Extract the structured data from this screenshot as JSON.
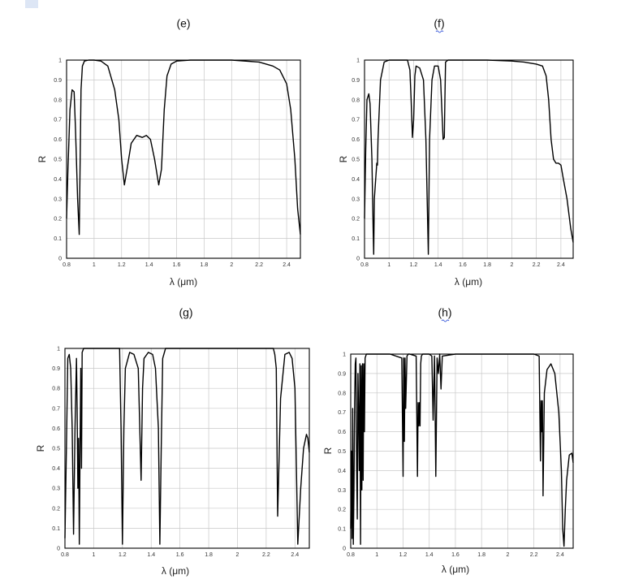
{
  "chart_data": [
    {
      "type": "line",
      "title": "(e)",
      "xlabel": "λ (μm)",
      "ylabel": "R",
      "xlim": [
        0.8,
        2.5
      ],
      "ylim": [
        0,
        1
      ],
      "x_ticks": [
        "0.8",
        "1",
        "1.2",
        "1.4",
        "1.6",
        "1.8",
        "2",
        "2.2",
        "2.4"
      ],
      "y_ticks": [
        "0",
        "0.1",
        "0.2",
        "0.3",
        "0.4",
        "0.5",
        "0.6",
        "0.7",
        "0.8",
        "0.9",
        "1"
      ],
      "grid": true,
      "series": [
        {
          "x": [
            0.8,
            0.81,
            0.825,
            0.84,
            0.855,
            0.865,
            0.88,
            0.892,
            0.9,
            0.905,
            0.915,
            0.93,
            0.96,
            1.0,
            1.05,
            1.1,
            1.15,
            1.18,
            1.2,
            1.22,
            1.24,
            1.27,
            1.31,
            1.35,
            1.38,
            1.41,
            1.44,
            1.47,
            1.49,
            1.51,
            1.53,
            1.56,
            1.6,
            1.7,
            1.8,
            2.0,
            2.2,
            2.3,
            2.35,
            2.4,
            2.43,
            2.46,
            2.48,
            2.5
          ],
          "y": [
            0.2,
            0.45,
            0.75,
            0.85,
            0.84,
            0.65,
            0.3,
            0.12,
            0.55,
            0.85,
            0.97,
            0.995,
            1.0,
            1.0,
            0.995,
            0.97,
            0.85,
            0.7,
            0.5,
            0.37,
            0.45,
            0.58,
            0.62,
            0.61,
            0.62,
            0.6,
            0.5,
            0.37,
            0.45,
            0.75,
            0.92,
            0.98,
            0.995,
            1.0,
            1.0,
            1.0,
            0.99,
            0.97,
            0.95,
            0.88,
            0.75,
            0.5,
            0.25,
            0.12
          ]
        }
      ]
    },
    {
      "type": "line",
      "title": "(f)",
      "xlabel": "λ (μm)",
      "ylabel": "R",
      "xlim": [
        0.8,
        2.5
      ],
      "ylim": [
        0,
        1
      ],
      "x_ticks": [
        "0.8",
        "1",
        "1.2",
        "1.4",
        "1.6",
        "1.8",
        "2",
        "2.2",
        "2.4"
      ],
      "y_ticks": [
        "0",
        "0.1",
        "0.2",
        "0.3",
        "0.4",
        "0.5",
        "0.6",
        "0.7",
        "0.8",
        "0.9",
        "1"
      ],
      "grid": true,
      "series": [
        {
          "x": [
            0.8,
            0.81,
            0.82,
            0.835,
            0.845,
            0.86,
            0.87,
            0.875,
            0.88,
            0.9,
            0.905,
            0.91,
            0.93,
            0.96,
            1.0,
            1.1,
            1.15,
            1.17,
            1.18,
            1.19,
            1.2,
            1.21,
            1.22,
            1.25,
            1.28,
            1.3,
            1.32,
            1.33,
            1.35,
            1.37,
            1.4,
            1.42,
            1.44,
            1.45,
            1.455,
            1.46,
            1.48,
            1.5,
            1.6,
            1.8,
            2.0,
            2.1,
            2.2,
            2.25,
            2.28,
            2.3,
            2.32,
            2.34,
            2.36,
            2.38,
            2.4,
            2.42,
            2.45,
            2.48,
            2.5
          ],
          "y": [
            0.2,
            0.55,
            0.8,
            0.83,
            0.78,
            0.5,
            0.15,
            0.02,
            0.3,
            0.48,
            0.47,
            0.6,
            0.9,
            0.99,
            1.0,
            1.0,
            1.0,
            0.95,
            0.8,
            0.61,
            0.7,
            0.92,
            0.97,
            0.96,
            0.9,
            0.6,
            0.02,
            0.6,
            0.9,
            0.97,
            0.97,
            0.9,
            0.6,
            0.61,
            0.8,
            0.99,
            1.0,
            1.0,
            1.0,
            1.0,
            0.995,
            0.99,
            0.98,
            0.97,
            0.92,
            0.8,
            0.6,
            0.5,
            0.48,
            0.48,
            0.47,
            0.4,
            0.3,
            0.15,
            0.08
          ]
        }
      ]
    },
    {
      "type": "line",
      "title": "(g)",
      "xlabel": "λ (μm)",
      "ylabel": "R",
      "xlim": [
        0.8,
        2.5
      ],
      "ylim": [
        0,
        1
      ],
      "x_ticks": [
        "0.8",
        "1",
        "1.2",
        "1.4",
        "1.6",
        "1.8",
        "2",
        "2.2",
        "2.4"
      ],
      "y_ticks": [
        "0",
        "0.1",
        "0.2",
        "0.3",
        "0.4",
        "0.5",
        "0.6",
        "0.7",
        "0.8",
        "0.9",
        "1"
      ],
      "grid": true,
      "series": [
        {
          "x": [
            0.8,
            0.81,
            0.82,
            0.83,
            0.84,
            0.85,
            0.86,
            0.87,
            0.88,
            0.885,
            0.89,
            0.895,
            0.9,
            0.905,
            0.91,
            0.915,
            0.92,
            0.93,
            0.95,
            1.0,
            1.1,
            1.18,
            1.19,
            1.2,
            1.21,
            1.22,
            1.25,
            1.28,
            1.31,
            1.33,
            1.34,
            1.35,
            1.38,
            1.41,
            1.43,
            1.45,
            1.46,
            1.47,
            1.48,
            1.5,
            1.6,
            2.0,
            2.2,
            2.25,
            2.26,
            2.27,
            2.28,
            2.3,
            2.33,
            2.36,
            2.38,
            2.4,
            2.41,
            2.42,
            2.44,
            2.46,
            2.48,
            2.49,
            2.5
          ],
          "y": [
            0.05,
            0.5,
            0.95,
            0.97,
            0.9,
            0.6,
            0.07,
            0.6,
            0.95,
            0.7,
            0.3,
            0.55,
            0.02,
            0.5,
            0.9,
            0.4,
            0.98,
            1.0,
            1.0,
            1.0,
            1.0,
            1.0,
            0.6,
            0.02,
            0.6,
            0.9,
            0.98,
            0.97,
            0.9,
            0.34,
            0.8,
            0.95,
            0.98,
            0.97,
            0.9,
            0.6,
            0.02,
            0.5,
            0.95,
            1.0,
            1.0,
            1.0,
            1.0,
            1.0,
            0.97,
            0.9,
            0.16,
            0.75,
            0.97,
            0.98,
            0.95,
            0.8,
            0.4,
            0.02,
            0.3,
            0.5,
            0.57,
            0.55,
            0.48
          ]
        }
      ]
    },
    {
      "type": "line",
      "title": "(h)",
      "xlabel": "λ (μm)",
      "ylabel": "R",
      "xlim": [
        0.8,
        2.5
      ],
      "ylim": [
        0,
        1
      ],
      "x_ticks": [
        "0.8",
        "1",
        "1.2",
        "1.4",
        "1.6",
        "1.8",
        "2",
        "2.2",
        "2.4"
      ],
      "y_ticks": [
        "0",
        "0.1",
        "0.2",
        "0.3",
        "0.4",
        "0.5",
        "0.6",
        "0.7",
        "0.8",
        "0.9",
        "1"
      ],
      "grid": true,
      "series": [
        {
          "x": [
            0.8,
            0.805,
            0.81,
            0.815,
            0.82,
            0.825,
            0.83,
            0.835,
            0.84,
            0.845,
            0.85,
            0.855,
            0.86,
            0.865,
            0.87,
            0.875,
            0.88,
            0.885,
            0.89,
            0.895,
            0.9,
            0.905,
            0.91,
            0.915,
            0.92,
            0.93,
            0.95,
            1.0,
            1.1,
            1.19,
            1.2,
            1.205,
            1.21,
            1.215,
            1.22,
            1.23,
            1.24,
            1.25,
            1.3,
            1.31,
            1.315,
            1.32,
            1.325,
            1.33,
            1.335,
            1.34,
            1.35,
            1.4,
            1.42,
            1.43,
            1.44,
            1.45,
            1.46,
            1.47,
            1.48,
            1.49,
            1.5,
            1.6,
            2.0,
            2.2,
            2.24,
            2.25,
            2.255,
            2.26,
            2.265,
            2.27,
            2.28,
            2.3,
            2.33,
            2.36,
            2.39,
            2.41,
            2.42,
            2.43,
            2.44,
            2.45,
            2.47,
            2.49,
            2.5
          ],
          "y": [
            0.1,
            0.5,
            0.05,
            0.72,
            0.02,
            0.3,
            0.75,
            0.95,
            0.98,
            0.4,
            0.15,
            0.9,
            0.7,
            0.4,
            0.95,
            0.02,
            0.94,
            0.3,
            0.95,
            0.35,
            0.95,
            0.6,
            0.98,
            0.99,
            1.0,
            1.0,
            1.0,
            1.0,
            1.0,
            0.98,
            0.37,
            0.98,
            0.55,
            0.98,
            0.72,
            0.99,
            1.0,
            1.0,
            0.99,
            0.37,
            0.75,
            0.63,
            0.75,
            0.63,
            0.95,
            0.99,
            1.0,
            1.0,
            0.99,
            0.66,
            0.99,
            0.37,
            0.98,
            0.9,
            1.0,
            0.82,
            0.99,
            1.0,
            1.0,
            1.0,
            0.99,
            0.45,
            0.76,
            0.6,
            0.76,
            0.27,
            0.8,
            0.92,
            0.95,
            0.9,
            0.7,
            0.4,
            0.1,
            0.01,
            0.2,
            0.35,
            0.48,
            0.49,
            0.44
          ]
        }
      ]
    }
  ]
}
